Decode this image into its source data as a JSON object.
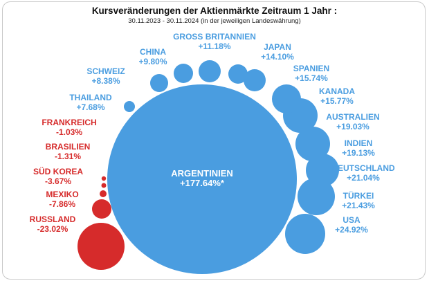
{
  "chart_data": {
    "type": "bubble",
    "title": "Kursveränderungen der Aktienmärkte Zeitraum 1  Jahr :",
    "subtitle": "30.11.2023 - 30.11.2024 (in der jeweiligen Landeswährung)",
    "colors": {
      "positive": "#4a9de0",
      "negative": "#d62b2b"
    },
    "series": [
      {
        "country": "ARGENTINIEN",
        "value": 177.64,
        "display": "+177.64%*"
      },
      {
        "country": "USA",
        "value": 24.92,
        "display": "+24.92%"
      },
      {
        "country": "TÜRKEI",
        "value": 21.43,
        "display": "+21.43%"
      },
      {
        "country": "DEUTSCHLAND",
        "value": 21.04,
        "display": "+21.04%"
      },
      {
        "country": "INDIEN",
        "value": 19.13,
        "display": "+19.13%"
      },
      {
        "country": "AUSTRALIEN",
        "value": 19.03,
        "display": "+19.03%"
      },
      {
        "country": "KANADA",
        "value": 15.77,
        "display": "+15.77%"
      },
      {
        "country": "SPANIEN",
        "value": 15.74,
        "display": "+15.74%"
      },
      {
        "country": "JAPAN",
        "value": 14.1,
        "display": "+14.10%"
      },
      {
        "country": "GROSS BRITANNIEN",
        "value": 11.18,
        "display": "+11.18%"
      },
      {
        "country": "CHINA",
        "value": 9.8,
        "display": "+9.80%"
      },
      {
        "country": "SCHWEIZ",
        "value": 8.38,
        "display": "+8.38%"
      },
      {
        "country": "THAILAND",
        "value": 7.68,
        "display": "+7.68%"
      },
      {
        "country": "FRANKREICH",
        "value": -1.03,
        "display": "-1.03%"
      },
      {
        "country": "BRASILIEN",
        "value": -1.31,
        "display": "-1.31%"
      },
      {
        "country": "SÜD KOREA",
        "value": -3.67,
        "display": "-3.67%"
      },
      {
        "country": "MEXIKO",
        "value": -7.86,
        "display": "-7.86%"
      },
      {
        "country": "RUSSLAND",
        "value": -23.02,
        "display": "-23.02%"
      }
    ]
  }
}
